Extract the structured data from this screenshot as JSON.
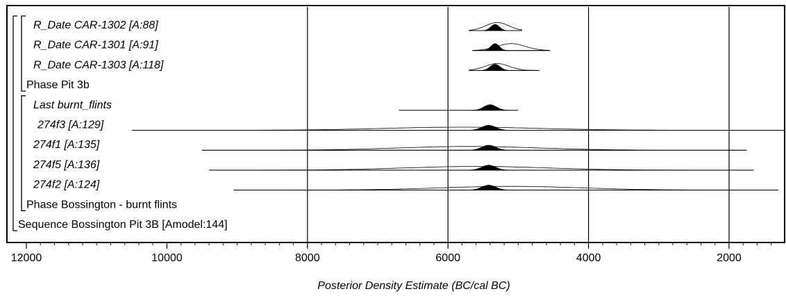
{
  "chart_data": {
    "type": "ridgeline-density",
    "xlabel": "Posterior Density Estimate (BC/cal BC)",
    "xlim": [
      12200,
      1200
    ],
    "x_reversed": true,
    "x_ticks": [
      12000,
      10000,
      8000,
      6000,
      4000,
      2000
    ],
    "x_tick_labels": [
      "12000",
      "10000",
      "8000",
      "6000",
      "4000",
      "2000"
    ],
    "grid_lines_at": [
      8000,
      6000,
      4000,
      2000
    ],
    "rows": [
      {
        "label": "R_Date CAR-1302 [A:88]",
        "italic": true,
        "kind": "date",
        "posterior": {
          "center": 5330,
          "sd": 60,
          "height": 0.5
        },
        "prior": {
          "center": 5300,
          "sd": 160,
          "height": 0.65
        },
        "range": [
          5700,
          4950
        ]
      },
      {
        "label": "R_Date CAR-1301 [A:91]",
        "italic": true,
        "kind": "date",
        "posterior": {
          "center": 5330,
          "sd": 60,
          "height": 0.55
        },
        "prior": {
          "center": 5100,
          "sd": 200,
          "height": 0.55
        },
        "range": [
          5650,
          4550
        ]
      },
      {
        "label": "R_Date CAR-1303 [A:118]",
        "italic": true,
        "kind": "date",
        "posterior": {
          "center": 5330,
          "sd": 70,
          "height": 0.5
        },
        "prior": {
          "center": 5300,
          "sd": 170,
          "height": 0.55
        },
        "range": [
          5700,
          4700
        ]
      },
      {
        "label": "Phase Pit 3b",
        "italic": false,
        "kind": "phase"
      },
      {
        "label": "Last burnt_flints",
        "italic": true,
        "kind": "boundary",
        "posterior": {
          "center": 5400,
          "sd": 90,
          "height": 0.45
        },
        "range": [
          6700,
          5000
        ]
      },
      {
        "label": "274f3 [A:129]",
        "italic": true,
        "kind": "date",
        "posterior": {
          "center": 5420,
          "sd": 100,
          "height": 0.4
        },
        "prior": {
          "center": 5800,
          "sd": 1100,
          "height": 0.25
        },
        "range": [
          10500,
          1200
        ]
      },
      {
        "label": "274f1 [A:135]",
        "italic": true,
        "kind": "date",
        "posterior": {
          "center": 5420,
          "sd": 100,
          "height": 0.4
        },
        "prior": {
          "center": 5700,
          "sd": 1000,
          "height": 0.3
        },
        "range": [
          9500,
          1750
        ]
      },
      {
        "label": "274f5 [A:136]",
        "italic": true,
        "kind": "date",
        "posterior": {
          "center": 5420,
          "sd": 100,
          "height": 0.4
        },
        "prior": {
          "center": 5600,
          "sd": 1000,
          "height": 0.3
        },
        "range": [
          9400,
          1650
        ]
      },
      {
        "label": "274f2 [A:124]",
        "italic": true,
        "kind": "date",
        "posterior": {
          "center": 5420,
          "sd": 100,
          "height": 0.4
        },
        "prior": {
          "center": 5100,
          "sd": 1000,
          "height": 0.3
        },
        "range": [
          9050,
          1300
        ]
      },
      {
        "label": "Phase Bossington - burnt flints",
        "italic": false,
        "kind": "phase"
      },
      {
        "label": "Sequence Bossington Pit 3B [Amodel:144]",
        "italic": false,
        "kind": "sequence"
      }
    ]
  }
}
